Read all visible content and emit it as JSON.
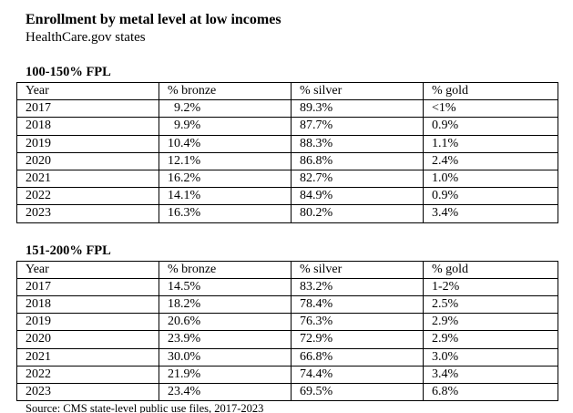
{
  "page": {
    "title": "Enrollment by metal level at low incomes",
    "subtitle": "HealthCare.gov states",
    "source": "Source: CMS state-level public use files, 2017-2023",
    "text_color": "#000000",
    "background_color": "#ffffff"
  },
  "tables": [
    {
      "heading": "100-150% FPL",
      "columns": [
        "Year",
        "% bronze",
        "% silver",
        "% gold"
      ],
      "rows": [
        [
          "2017",
          "  9.2%",
          "89.3%",
          "<1%"
        ],
        [
          "2018",
          "  9.9%",
          "87.7%",
          "0.9%"
        ],
        [
          "2019",
          "10.4%",
          "88.3%",
          "1.1%"
        ],
        [
          "2020",
          "12.1%",
          "86.8%",
          "2.4%"
        ],
        [
          "2021",
          "16.2%",
          "82.7%",
          "1.0%"
        ],
        [
          "2022",
          "14.1%",
          "84.9%",
          "0.9%"
        ],
        [
          "2023",
          "16.3%",
          "80.2%",
          "3.4%"
        ]
      ]
    },
    {
      "heading": "151-200% FPL",
      "columns": [
        "Year",
        "% bronze",
        "% silver",
        "% gold"
      ],
      "rows": [
        [
          "2017",
          "14.5%",
          "83.2%",
          "1-2%"
        ],
        [
          "2018",
          "18.2%",
          "78.4%",
          "2.5%"
        ],
        [
          "2019",
          "20.6%",
          "76.3%",
          "2.9%"
        ],
        [
          "2020",
          "23.9%",
          "72.9%",
          "2.9%"
        ],
        [
          "2021",
          "30.0%",
          "66.8%",
          "3.0%"
        ],
        [
          "2022",
          "21.9%",
          "74.4%",
          "3.4%"
        ],
        [
          "2023",
          "23.4%",
          "69.5%",
          "6.8%"
        ]
      ]
    }
  ]
}
